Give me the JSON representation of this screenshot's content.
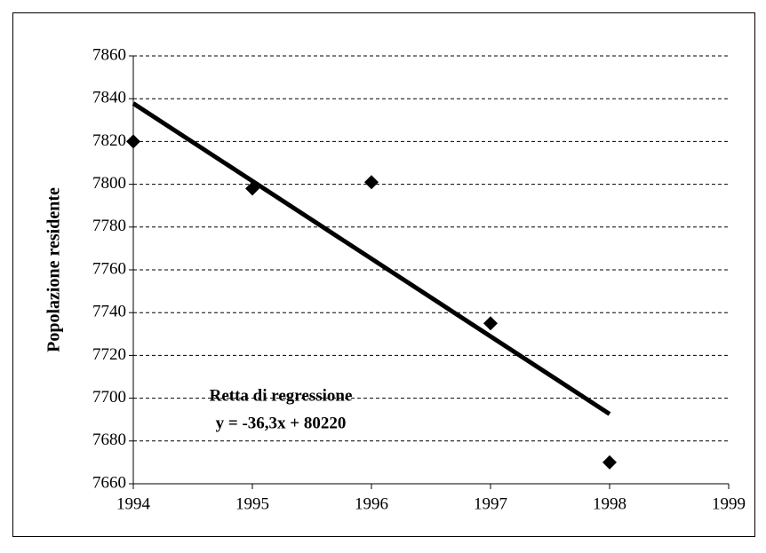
{
  "chart_data": {
    "type": "scatter",
    "y_label": "Popolazione residente",
    "x": [
      1994,
      1995,
      1996,
      1997,
      1998
    ],
    "values": [
      7820,
      7798,
      7801,
      7735,
      7670
    ],
    "color": "#000000",
    "trendline": {
      "x": [
        1994,
        1998
      ],
      "values": [
        7837.8,
        7692.6
      ]
    },
    "annotation": [
      "Retta di regressione",
      "y = -36,3x + 80220"
    ],
    "xlim": [
      1994,
      1999
    ],
    "xticks": [
      1994,
      1995,
      1996,
      1997,
      1998,
      1999
    ],
    "ylim": [
      7660,
      7860
    ],
    "yticks": [
      7660,
      7680,
      7700,
      7720,
      7740,
      7760,
      7780,
      7800,
      7820,
      7840,
      7860
    ],
    "grid": true
  }
}
